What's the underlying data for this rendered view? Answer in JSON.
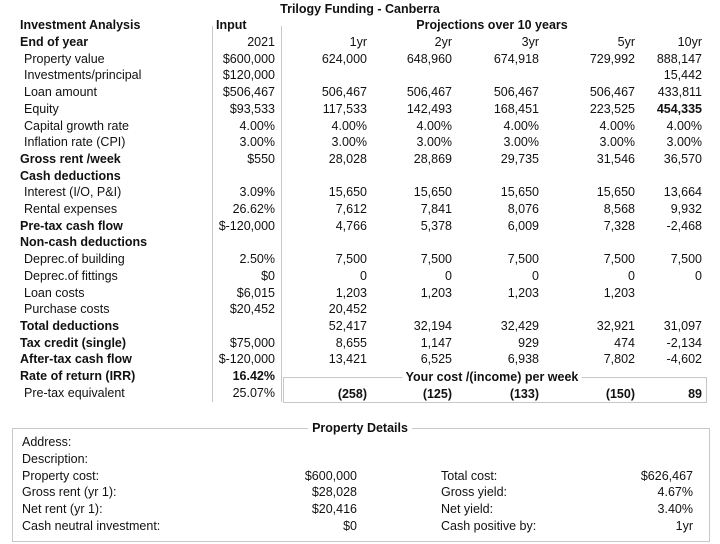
{
  "title": "Trilogy Funding - Canberra",
  "header": {
    "label": "Investment Analysis",
    "input": "Input",
    "projections": "Projections over 10 years"
  },
  "table": {
    "rows": [
      {
        "label": "End of year",
        "input": "2021",
        "values": [
          "1yr",
          "2yr",
          "3yr",
          "5yr",
          "10yr"
        ]
      },
      {
        "label": "Property value",
        "input": "$600,000",
        "values": [
          "624,000",
          "648,960",
          "674,918",
          "729,992",
          "888,147"
        ]
      },
      {
        "label": "Investments/principal",
        "input": "$120,000",
        "values": [
          null,
          null,
          null,
          null,
          "15,442"
        ]
      },
      {
        "label": "Loan amount",
        "input": "$506,467",
        "values": [
          "506,467",
          "506,467",
          "506,467",
          "506,467",
          "433,811"
        ]
      },
      {
        "label": "Equity",
        "input": "$93,533",
        "values": [
          "117,533",
          "142,493",
          "168,451",
          "223,525",
          "454,335"
        ]
      },
      {
        "label": "Capital growth rate",
        "input": "4.00%",
        "values": [
          "4.00%",
          "4.00%",
          "4.00%",
          "4.00%",
          "4.00%"
        ]
      },
      {
        "label": "Inflation rate (CPI)",
        "input": "3.00%",
        "values": [
          "3.00%",
          "3.00%",
          "3.00%",
          "3.00%",
          "3.00%"
        ]
      },
      {
        "label": "Gross rent /week",
        "input": "$550",
        "values": [
          "28,028",
          "28,869",
          "29,735",
          "31,546",
          "36,570"
        ]
      },
      {
        "label": "Cash deductions",
        "input": null,
        "values": [
          null,
          null,
          null,
          null,
          null
        ]
      },
      {
        "label": "Interest (I/O, P&I)",
        "input": "3.09%",
        "values": [
          "15,650",
          "15,650",
          "15,650",
          "15,650",
          "13,664"
        ]
      },
      {
        "label": "Rental expenses",
        "input": "26.62%",
        "values": [
          "7,612",
          "7,841",
          "8,076",
          "8,568",
          "9,932"
        ]
      },
      {
        "label": "Pre-tax cash flow",
        "input": "$-120,000",
        "values": [
          "4,766",
          "5,378",
          "6,009",
          "7,328",
          "-2,468"
        ]
      },
      {
        "label": "Non-cash deductions",
        "input": null,
        "values": [
          null,
          null,
          null,
          null,
          null
        ]
      },
      {
        "label": "Deprec.of building",
        "input": "2.50%",
        "values": [
          "7,500",
          "7,500",
          "7,500",
          "7,500",
          "7,500"
        ]
      },
      {
        "label": "Deprec.of fittings",
        "input": "$0",
        "values": [
          "0",
          "0",
          "0",
          "0",
          "0"
        ]
      },
      {
        "label": "Loan costs",
        "input": "$6,015",
        "values": [
          "1,203",
          "1,203",
          "1,203",
          "1,203",
          null
        ]
      },
      {
        "label": "Purchase costs",
        "input": "$20,452",
        "values": [
          "20,452",
          null,
          null,
          null,
          null
        ]
      },
      {
        "label": "Total deductions",
        "input": null,
        "values": [
          "52,417",
          "32,194",
          "32,429",
          "32,921",
          "31,097"
        ]
      },
      {
        "label": "Tax credit (single)",
        "input": "$75,000",
        "values": [
          "8,655",
          "1,147",
          "929",
          "474",
          "-2,134"
        ]
      },
      {
        "label": "After-tax cash flow",
        "input": "$-120,000",
        "values": [
          "13,421",
          "6,525",
          "6,938",
          "7,802",
          "-4,602"
        ]
      },
      {
        "label": "Rate of return (IRR)",
        "input": "16.42%",
        "values": [
          null,
          null,
          null,
          null,
          null
        ]
      },
      {
        "label": "Pre-tax equivalent",
        "input": "25.07%",
        "values": [
          "(258)",
          "(125)",
          "(133)",
          "(150)",
          "89"
        ]
      }
    ],
    "weekly_title": "Your cost /(income) per week"
  },
  "details": {
    "title": "Property Details",
    "left": [
      {
        "label": "Address:",
        "value": null
      },
      {
        "label": "Description:",
        "value": null
      },
      {
        "label": "Property cost:",
        "value": "$600,000"
      },
      {
        "label": "Gross rent (yr 1):",
        "value": "$28,028"
      },
      {
        "label": "Net rent (yr 1):",
        "value": "$20,416"
      },
      {
        "label": "Cash neutral investment:",
        "value": "$0"
      }
    ],
    "right": [
      {
        "label": "Total cost:",
        "value": "$626,467"
      },
      {
        "label": "Gross yield:",
        "value": "4.67%"
      },
      {
        "label": "Net yield:",
        "value": "3.40%"
      },
      {
        "label": "Cash positive by:",
        "value": "1yr"
      }
    ]
  }
}
